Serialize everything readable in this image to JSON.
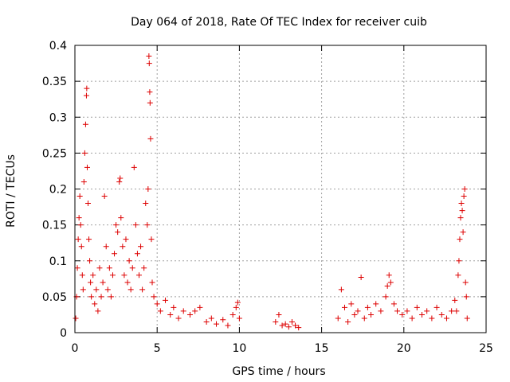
{
  "chart_data": {
    "type": "scatter",
    "title": "Day 064 of 2018, Rate Of TEC Index for receiver cuib",
    "xlabel": "GPS time / hours",
    "ylabel": "ROTI / TECUs",
    "xlim": [
      0,
      25
    ],
    "ylim": [
      0,
      0.4
    ],
    "xticks": [
      0,
      5,
      10,
      15,
      20,
      25
    ],
    "xtick_labels": [
      "0",
      "5",
      "10",
      "15",
      "20",
      "25"
    ],
    "yticks": [
      0,
      0.05,
      0.1,
      0.15,
      0.2,
      0.25,
      0.3,
      0.35,
      0.4
    ],
    "ytick_labels": [
      "0",
      "0.05",
      "0.1",
      "0.15",
      "0.2",
      "0.25",
      "0.3",
      "0.35",
      "0.4"
    ],
    "grid": true,
    "marker": "+",
    "color": "#dd0000",
    "series": [
      {
        "name": "ROTI",
        "points": [
          [
            0.05,
            0.02
          ],
          [
            0.1,
            0.05
          ],
          [
            0.15,
            0.09
          ],
          [
            0.2,
            0.13
          ],
          [
            0.25,
            0.16
          ],
          [
            0.3,
            0.19
          ],
          [
            0.35,
            0.15
          ],
          [
            0.4,
            0.12
          ],
          [
            0.45,
            0.08
          ],
          [
            0.5,
            0.06
          ],
          [
            0.55,
            0.21
          ],
          [
            0.6,
            0.25
          ],
          [
            0.65,
            0.29
          ],
          [
            0.7,
            0.33
          ],
          [
            0.72,
            0.34
          ],
          [
            0.75,
            0.23
          ],
          [
            0.8,
            0.18
          ],
          [
            0.85,
            0.13
          ],
          [
            0.9,
            0.1
          ],
          [
            0.95,
            0.07
          ],
          [
            1.0,
            0.05
          ],
          [
            1.1,
            0.08
          ],
          [
            1.2,
            0.04
          ],
          [
            1.3,
            0.06
          ],
          [
            1.4,
            0.03
          ],
          [
            1.5,
            0.09
          ],
          [
            1.6,
            0.05
          ],
          [
            1.7,
            0.07
          ],
          [
            1.8,
            0.19
          ],
          [
            1.9,
            0.12
          ],
          [
            2.0,
            0.06
          ],
          [
            2.1,
            0.09
          ],
          [
            2.2,
            0.05
          ],
          [
            2.3,
            0.08
          ],
          [
            2.4,
            0.11
          ],
          [
            2.5,
            0.15
          ],
          [
            2.6,
            0.14
          ],
          [
            2.7,
            0.21
          ],
          [
            2.75,
            0.215
          ],
          [
            2.8,
            0.16
          ],
          [
            2.9,
            0.12
          ],
          [
            3.0,
            0.08
          ],
          [
            3.1,
            0.13
          ],
          [
            3.2,
            0.07
          ],
          [
            3.3,
            0.1
          ],
          [
            3.4,
            0.06
          ],
          [
            3.5,
            0.09
          ],
          [
            3.6,
            0.23
          ],
          [
            3.7,
            0.15
          ],
          [
            3.8,
            0.11
          ],
          [
            3.9,
            0.08
          ],
          [
            4.0,
            0.12
          ],
          [
            4.1,
            0.06
          ],
          [
            4.2,
            0.09
          ],
          [
            4.3,
            0.18
          ],
          [
            4.4,
            0.15
          ],
          [
            4.45,
            0.2
          ],
          [
            4.5,
            0.385
          ],
          [
            4.52,
            0.375
          ],
          [
            4.55,
            0.335
          ],
          [
            4.57,
            0.32
          ],
          [
            4.6,
            0.27
          ],
          [
            4.65,
            0.13
          ],
          [
            4.7,
            0.07
          ],
          [
            4.8,
            0.05
          ],
          [
            5.0,
            0.04
          ],
          [
            5.2,
            0.03
          ],
          [
            5.5,
            0.045
          ],
          [
            5.8,
            0.025
          ],
          [
            6.0,
            0.035
          ],
          [
            6.3,
            0.02
          ],
          [
            6.6,
            0.03
          ],
          [
            7.0,
            0.025
          ],
          [
            7.3,
            0.03
          ],
          [
            7.6,
            0.035
          ],
          [
            8.0,
            0.015
          ],
          [
            8.3,
            0.02
          ],
          [
            8.6,
            0.012
          ],
          [
            9.0,
            0.018
          ],
          [
            9.3,
            0.01
          ],
          [
            9.6,
            0.025
          ],
          [
            9.8,
            0.035
          ],
          [
            9.9,
            0.042
          ],
          [
            10.0,
            0.02
          ],
          [
            12.2,
            0.015
          ],
          [
            12.4,
            0.025
          ],
          [
            12.6,
            0.01
          ],
          [
            12.8,
            0.012
          ],
          [
            13.0,
            0.008
          ],
          [
            13.2,
            0.015
          ],
          [
            13.4,
            0.01
          ],
          [
            13.6,
            0.007
          ],
          [
            16.0,
            0.02
          ],
          [
            16.2,
            0.06
          ],
          [
            16.4,
            0.035
          ],
          [
            16.6,
            0.015
          ],
          [
            16.8,
            0.04
          ],
          [
            17.0,
            0.025
          ],
          [
            17.2,
            0.03
          ],
          [
            17.4,
            0.077
          ],
          [
            17.6,
            0.02
          ],
          [
            17.8,
            0.035
          ],
          [
            18.0,
            0.025
          ],
          [
            18.3,
            0.04
          ],
          [
            18.6,
            0.03
          ],
          [
            18.9,
            0.05
          ],
          [
            19.0,
            0.065
          ],
          [
            19.1,
            0.08
          ],
          [
            19.2,
            0.07
          ],
          [
            19.4,
            0.04
          ],
          [
            19.6,
            0.03
          ],
          [
            19.9,
            0.025
          ],
          [
            20.2,
            0.03
          ],
          [
            20.5,
            0.02
          ],
          [
            20.8,
            0.035
          ],
          [
            21.1,
            0.025
          ],
          [
            21.4,
            0.03
          ],
          [
            21.7,
            0.02
          ],
          [
            22.0,
            0.035
          ],
          [
            22.3,
            0.025
          ],
          [
            22.6,
            0.02
          ],
          [
            22.9,
            0.03
          ],
          [
            23.1,
            0.045
          ],
          [
            23.2,
            0.03
          ],
          [
            23.3,
            0.08
          ],
          [
            23.35,
            0.1
          ],
          [
            23.4,
            0.13
          ],
          [
            23.45,
            0.16
          ],
          [
            23.5,
            0.18
          ],
          [
            23.55,
            0.17
          ],
          [
            23.6,
            0.14
          ],
          [
            23.65,
            0.19
          ],
          [
            23.7,
            0.2
          ],
          [
            23.75,
            0.07
          ],
          [
            23.8,
            0.05
          ],
          [
            23.85,
            0.02
          ]
        ]
      }
    ]
  }
}
